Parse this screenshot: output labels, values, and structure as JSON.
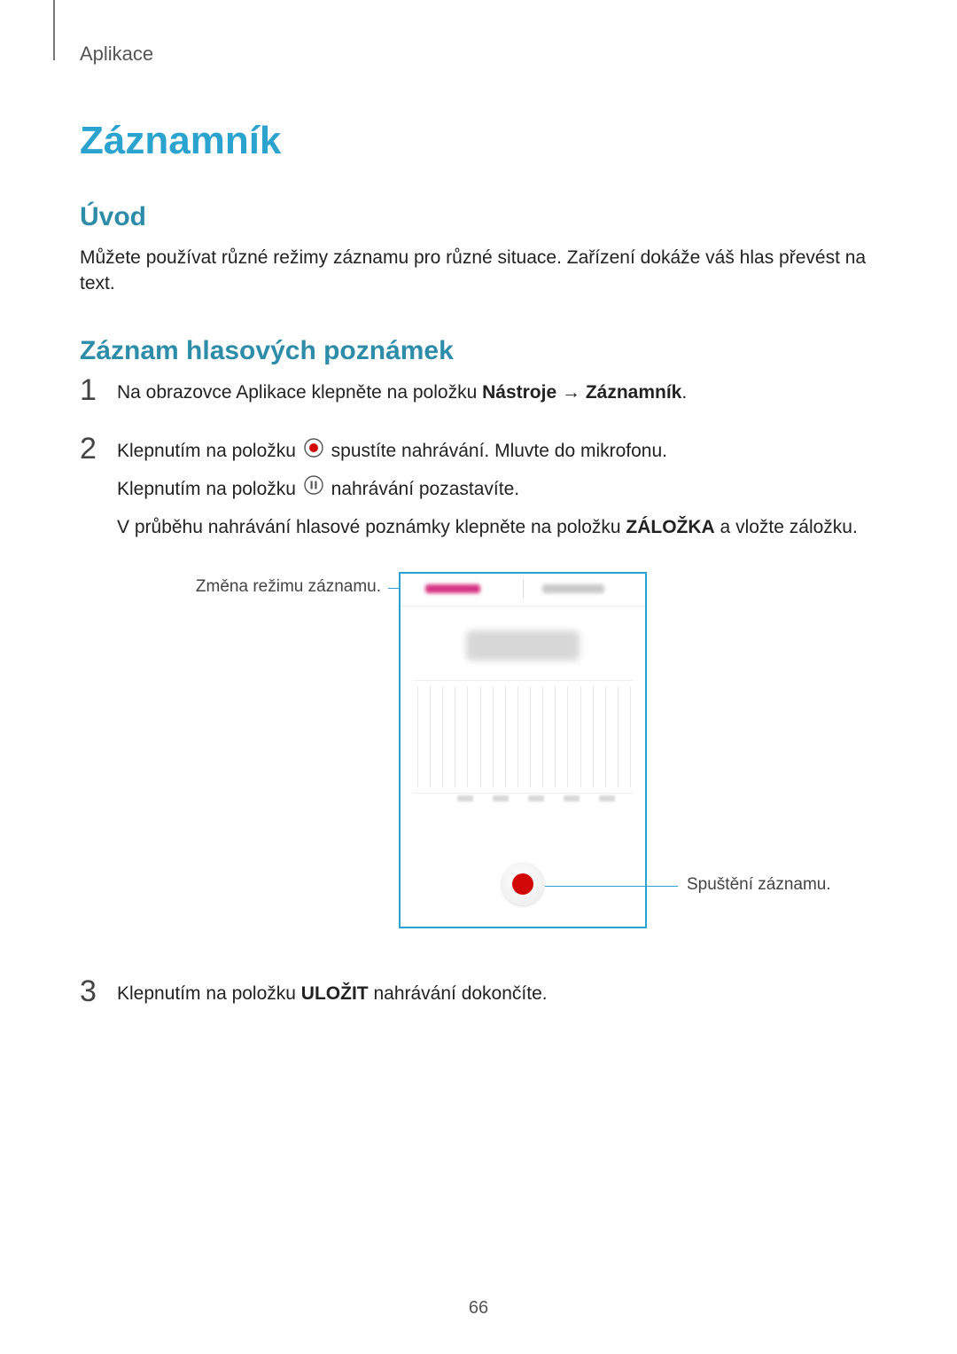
{
  "breadcrumb": "Aplikace",
  "title": "Záznamník",
  "section1": {
    "heading": "Úvod",
    "text": "Můžete používat různé režimy záznamu pro různé situace. Zařízení dokáže váš hlas převést na text."
  },
  "section2": {
    "heading": "Záznam hlasových poznámek"
  },
  "steps": {
    "s1": {
      "num": "1",
      "pre": "Na obrazovce Aplikace klepněte na položku ",
      "bold1": "Nástroje",
      "arrow": " → ",
      "bold2": "Záznamník",
      "post": "."
    },
    "s2": {
      "num": "2",
      "line1_pre": "Klepnutím na položku ",
      "line1_post": " spustíte nahrávání. Mluvte do mikrofonu.",
      "line2_pre": "Klepnutím na položku ",
      "line2_post": " nahrávání pozastavíte.",
      "line3_pre": "V průběhu nahrávání hlasové poznámky klepněte na položku ",
      "line3_bold": "ZÁLOŽKA",
      "line3_post": " a vložte záložku."
    },
    "s3": {
      "num": "3",
      "pre": "Klepnutím na položku ",
      "bold": "ULOŽIT",
      "post": " nahrávání dokončíte."
    }
  },
  "callouts": {
    "left": "Změna režimu záznamu.",
    "right": "Spuštění záznamu."
  },
  "figure": {
    "border_color": "#2aa4cf",
    "tab_active_color": "#d63384",
    "tab_inactive_color": "#c9c9c9",
    "record_color": "#d20707",
    "waveform_lines": 18,
    "tick_count": 5
  },
  "icons": {
    "record_inline": "record-circle-icon",
    "pause_inline": "pause-circle-icon"
  },
  "page_number": "66",
  "colors": {
    "title": "#2aa4cf",
    "subtitle": "#2d8da9",
    "text": "#222",
    "breadcrumb": "#555",
    "callout_line": "#2aa4cf"
  }
}
